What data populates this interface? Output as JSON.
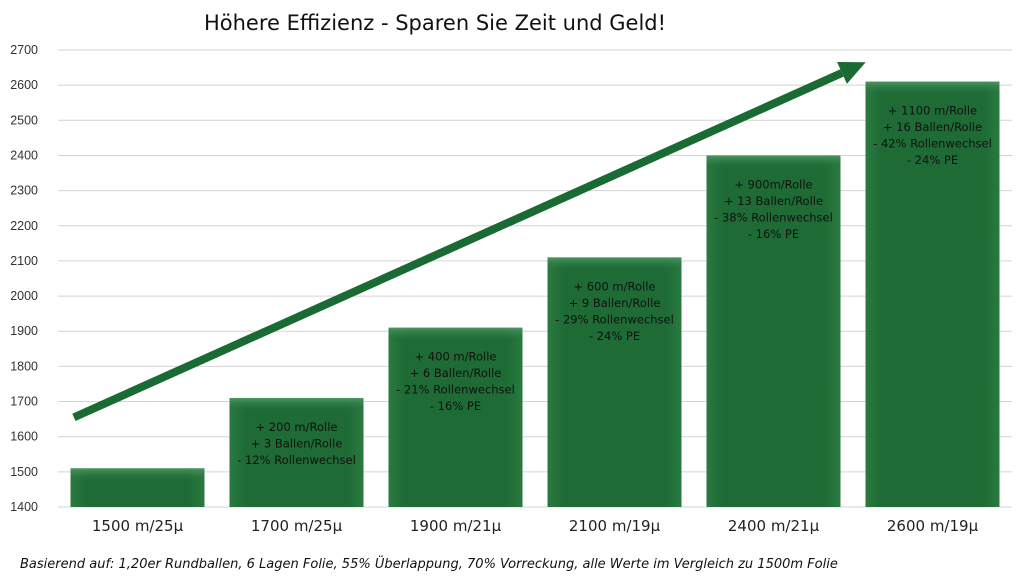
{
  "chart_data": {
    "type": "bar",
    "title": "Höhere Effizienz - Sparen Sie Zeit und Geld!",
    "categories": [
      "1500 m/25µ",
      "1700 m/25µ",
      "1900 m/21µ",
      "2100 m/19µ",
      "2400 m/21µ",
      "2600 m/19µ"
    ],
    "values": [
      1510,
      1710,
      1910,
      2110,
      2400,
      2610
    ],
    "ylim": [
      1400,
      2700
    ],
    "yticks": [
      1400,
      1500,
      1600,
      1700,
      1800,
      1900,
      2000,
      2100,
      2200,
      2300,
      2400,
      2500,
      2600,
      2700
    ],
    "grid": true,
    "bar_color": "#1e6b35",
    "arrow_color": "#1a6a34",
    "annotations": [
      [],
      [
        "+ 200 m/Rolle",
        "+ 3 Ballen/Rolle",
        "- 12% Rollenwechsel"
      ],
      [
        "+ 400 m/Rolle",
        "+ 6 Ballen/Rolle",
        "- 21% Rollenwechsel",
        "- 16% PE"
      ],
      [
        "+ 600 m/Rolle",
        "+ 9 Ballen/Rolle",
        "- 29% Rollenwechsel",
        "- 24% PE"
      ],
      [
        "+ 900m/Rolle",
        "+ 13 Ballen/Rolle",
        "- 38% Rollenwechsel",
        "- 16% PE"
      ],
      [
        "+ 1100 m/Rolle",
        "+ 16 Ballen/Rolle",
        "- 42% Rollenwechsel",
        "- 24%  PE"
      ]
    ],
    "footnote": "Basierend auf: 1,20er Rundballen, 6 Lagen Folie, 55% Überlappung, 70% Vorreckung, alle Werte im Vergleich zu 1500m Folie"
  }
}
